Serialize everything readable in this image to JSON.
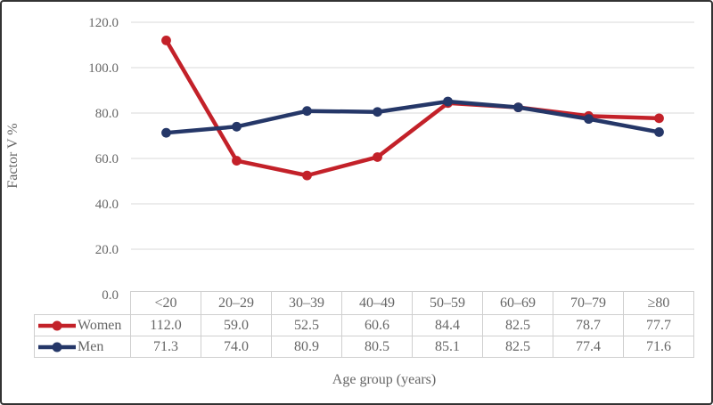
{
  "figure": {
    "background": "#ffffff",
    "border_color": "#333333"
  },
  "chart_data": {
    "type": "line",
    "title": "",
    "xlabel": "Age group (years)",
    "ylabel": "Factor V %",
    "categories": [
      "<20",
      "20–29",
      "30–39",
      "40–49",
      "50–59",
      "60–69",
      "70–79",
      "≥80"
    ],
    "series": [
      {
        "name": "Women",
        "color": "#c32129",
        "values": [
          "112.0",
          "59.0",
          "52.5",
          "60.6",
          "84.4",
          "82.5",
          "78.7",
          "77.7"
        ]
      },
      {
        "name": "Men",
        "color": "#253768",
        "values": [
          "71.3",
          "74.0",
          "80.9",
          "80.5",
          "85.1",
          "82.5",
          "77.4",
          "71.6"
        ]
      }
    ],
    "yticks": [
      "0.0",
      "20.0",
      "40.0",
      "60.0",
      "80.0",
      "100.0",
      "120.0"
    ],
    "ylim": [
      0,
      120
    ],
    "grid": true,
    "gridline_color": "#d9d9d9",
    "legend_position": "data-table-left",
    "data_table_shown": true,
    "marker": "circle"
  }
}
